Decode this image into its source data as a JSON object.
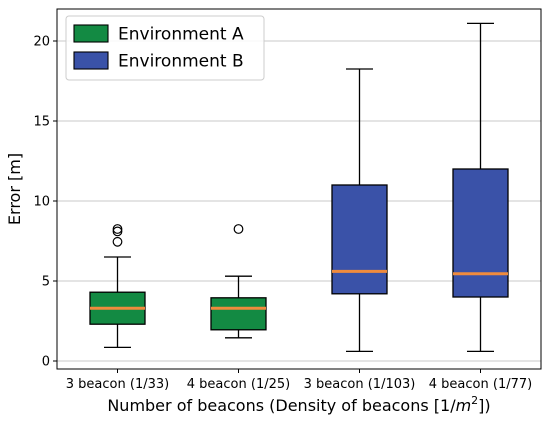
{
  "chart_data": {
    "type": "box",
    "title": "",
    "xlabel_main": "Number of beacons (Density of beacons [1/",
    "xlabel_unit_base": "m",
    "xlabel_unit_exp": "2",
    "xlabel_close": "])",
    "ylabel": "Error [m]",
    "ylim": [
      -0.5,
      22
    ],
    "yticks": [
      0,
      5,
      10,
      15,
      20
    ],
    "grid": "y",
    "legend_position": "top-left",
    "legend": [
      {
        "name": "Environment A",
        "color": "#138a43"
      },
      {
        "name": "Environment B",
        "color": "#3a52a8"
      }
    ],
    "categories": [
      "3 beacon (1/33)",
      "4 beacon (1/25)",
      "3 beacon (1/103)",
      "4 beacon (1/77)"
    ],
    "boxes": [
      {
        "category": "3 beacon (1/33)",
        "group": "Environment A",
        "whisker_low": 0.85,
        "q1": 2.3,
        "median": 3.3,
        "q3": 4.3,
        "whisker_high": 6.5,
        "outliers": [
          7.45,
          8.1,
          8.25
        ]
      },
      {
        "category": "4 beacon (1/25)",
        "group": "Environment A",
        "whisker_low": 1.45,
        "q1": 1.95,
        "median": 3.3,
        "q3": 3.95,
        "whisker_high": 5.3,
        "outliers": [
          8.25
        ]
      },
      {
        "category": "3 beacon (1/103)",
        "group": "Environment B",
        "whisker_low": 0.6,
        "q1": 4.2,
        "median": 5.6,
        "q3": 11.0,
        "whisker_high": 18.25,
        "outliers": []
      },
      {
        "category": "4 beacon (1/77)",
        "group": "Environment B",
        "whisker_low": 0.6,
        "q1": 4.0,
        "median": 5.45,
        "q3": 12.0,
        "whisker_high": 21.1,
        "outliers": []
      }
    ],
    "colors": {
      "median": "#f08b3d",
      "edge": "#000000",
      "grid": "#c8c8c8"
    }
  }
}
